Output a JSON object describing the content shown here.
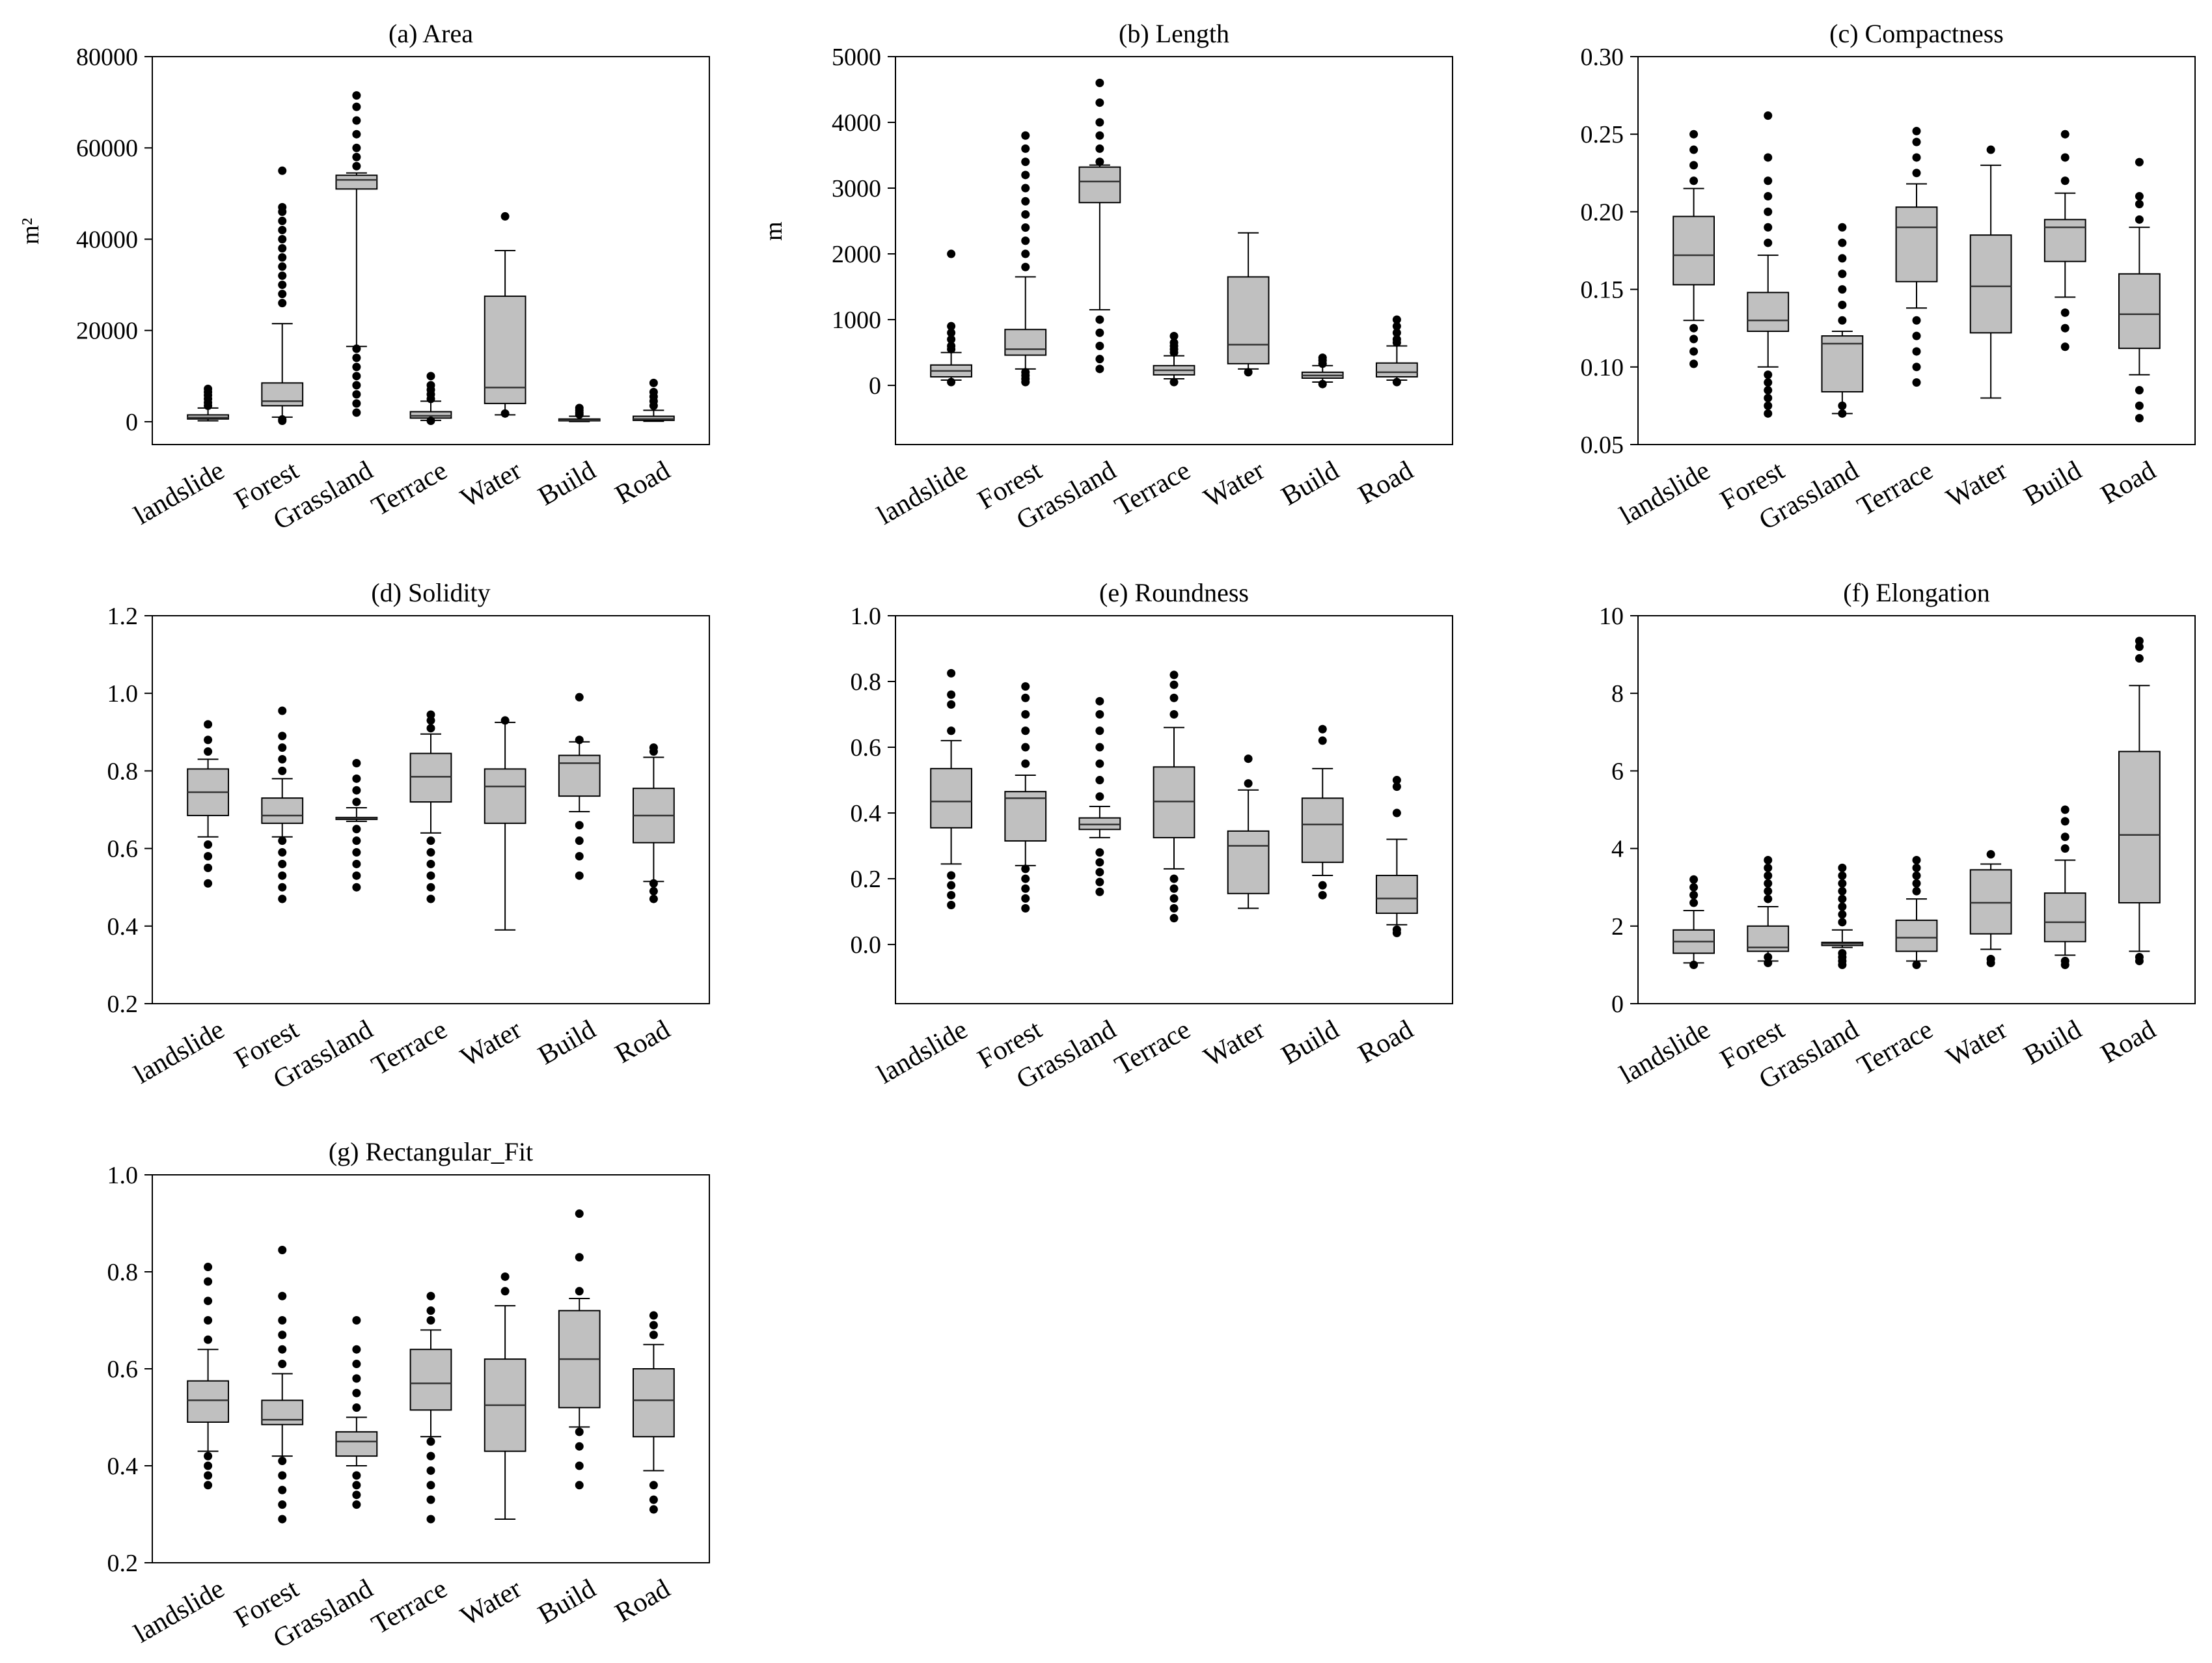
{
  "chart_data": [
    {
      "type": "box",
      "title": "(a) Area",
      "ylabel": "m²",
      "ylim": [
        -5000,
        80000
      ],
      "yticks": [
        0,
        20000,
        40000,
        60000,
        80000
      ],
      "ytick_labels": [
        "0",
        "20000",
        "40000",
        "60000",
        "80000"
      ],
      "categories": [
        "landslide",
        "Forest",
        "Grassland",
        "Terrace",
        "Water",
        "Build",
        "Road"
      ],
      "boxes": [
        {
          "min": 200,
          "q1": 600,
          "median": 900,
          "q3": 1500,
          "max": 3000,
          "outliers": [
            3500,
            4200,
            5000,
            5800,
            6500,
            7200
          ]
        },
        {
          "min": 1000,
          "q1": 3500,
          "median": 4500,
          "q3": 8500,
          "max": 21500,
          "outliers": [
            500,
            200,
            26000,
            28000,
            30000,
            32000,
            34000,
            36000,
            38000,
            40000,
            42000,
            44000,
            46000,
            47000,
            55000
          ]
        },
        {
          "min": 16500,
          "q1": 51000,
          "median": 53000,
          "q3": 54000,
          "max": 54500,
          "outliers": [
            2000,
            4000,
            6000,
            8000,
            10000,
            12000,
            14000,
            16000,
            56000,
            58000,
            60000,
            63000,
            66000,
            69000,
            71500
          ]
        },
        {
          "min": 300,
          "q1": 800,
          "median": 1300,
          "q3": 2200,
          "max": 4500,
          "outliers": [
            5000,
            6000,
            7000,
            8000,
            10000,
            200
          ]
        },
        {
          "min": 1500,
          "q1": 4000,
          "median": 7500,
          "q3": 27500,
          "max": 37500,
          "outliers": [
            45000,
            1800
          ]
        },
        {
          "min": 50,
          "q1": 200,
          "median": 350,
          "q3": 600,
          "max": 1200,
          "outliers": [
            1600,
            2000,
            2500,
            3000
          ]
        },
        {
          "min": 100,
          "q1": 300,
          "median": 600,
          "q3": 1200,
          "max": 2500,
          "outliers": [
            3500,
            4500,
            5500,
            6500,
            8500
          ]
        }
      ]
    },
    {
      "type": "box",
      "title": "(b) Length",
      "ylabel": "m",
      "ylim": [
        -900,
        5000
      ],
      "yticks": [
        0,
        1000,
        2000,
        3000,
        4000,
        5000
      ],
      "ytick_labels": [
        "0",
        "1000",
        "2000",
        "3000",
        "4000",
        "5000"
      ],
      "categories": [
        "landslide",
        "Forest",
        "Grassland",
        "Terrace",
        "Water",
        "Build",
        "Road"
      ],
      "boxes": [
        {
          "min": 80,
          "q1": 130,
          "median": 220,
          "q3": 310,
          "max": 500,
          "outliers": [
            550,
            600,
            700,
            800,
            900,
            2000,
            50
          ]
        },
        {
          "min": 250,
          "q1": 460,
          "median": 550,
          "q3": 850,
          "max": 1650,
          "outliers": [
            50,
            100,
            150,
            200,
            1800,
            2000,
            2200,
            2400,
            2600,
            2800,
            3000,
            3200,
            3400,
            3600,
            3800
          ]
        },
        {
          "min": 1150,
          "q1": 2780,
          "median": 3100,
          "q3": 3320,
          "max": 3350,
          "outliers": [
            250,
            400,
            600,
            800,
            1000,
            3400,
            3600,
            3800,
            4000,
            4300,
            4600
          ]
        },
        {
          "min": 100,
          "q1": 160,
          "median": 230,
          "q3": 300,
          "max": 450,
          "outliers": [
            500,
            550,
            600,
            650,
            750,
            50
          ]
        },
        {
          "min": 250,
          "q1": 330,
          "median": 620,
          "q3": 1650,
          "max": 2320,
          "outliers": [
            200
          ]
        },
        {
          "min": 50,
          "q1": 110,
          "median": 150,
          "q3": 200,
          "max": 300,
          "outliers": [
            330,
            380,
            420,
            20
          ]
        },
        {
          "min": 80,
          "q1": 130,
          "median": 200,
          "q3": 340,
          "max": 600,
          "outliers": [
            650,
            700,
            800,
            900,
            1000,
            50
          ]
        }
      ]
    },
    {
      "type": "box",
      "title": "(c) Compactness",
      "ylabel": "",
      "ylim": [
        0.05,
        0.3
      ],
      "yticks": [
        0.05,
        0.1,
        0.15,
        0.2,
        0.25,
        0.3
      ],
      "ytick_labels": [
        "0.05",
        "0.10",
        "0.15",
        "0.20",
        "0.25",
        "0.30"
      ],
      "categories": [
        "landslide",
        "Forest",
        "Grassland",
        "Terrace",
        "Water",
        "Build",
        "Road"
      ],
      "boxes": [
        {
          "min": 0.13,
          "q1": 0.153,
          "median": 0.172,
          "q3": 0.197,
          "max": 0.215,
          "outliers": [
            0.102,
            0.11,
            0.118,
            0.125,
            0.22,
            0.23,
            0.24,
            0.25
          ]
        },
        {
          "min": 0.1,
          "q1": 0.123,
          "median": 0.13,
          "q3": 0.148,
          "max": 0.172,
          "outliers": [
            0.07,
            0.075,
            0.08,
            0.085,
            0.09,
            0.095,
            0.18,
            0.19,
            0.2,
            0.21,
            0.22,
            0.235,
            0.262
          ]
        },
        {
          "min": 0.07,
          "q1": 0.084,
          "median": 0.115,
          "q3": 0.12,
          "max": 0.123,
          "outliers": [
            0.07,
            0.075,
            0.13,
            0.14,
            0.15,
            0.16,
            0.17,
            0.18,
            0.19
          ]
        },
        {
          "min": 0.138,
          "q1": 0.155,
          "median": 0.19,
          "q3": 0.203,
          "max": 0.218,
          "outliers": [
            0.09,
            0.1,
            0.11,
            0.12,
            0.13,
            0.225,
            0.235,
            0.245,
            0.252
          ]
        },
        {
          "min": 0.08,
          "q1": 0.122,
          "median": 0.152,
          "q3": 0.185,
          "max": 0.23,
          "outliers": [
            0.24
          ]
        },
        {
          "min": 0.145,
          "q1": 0.168,
          "median": 0.19,
          "q3": 0.195,
          "max": 0.212,
          "outliers": [
            0.113,
            0.125,
            0.135,
            0.22,
            0.235,
            0.25
          ]
        },
        {
          "min": 0.095,
          "q1": 0.112,
          "median": 0.134,
          "q3": 0.16,
          "max": 0.19,
          "outliers": [
            0.067,
            0.075,
            0.085,
            0.195,
            0.205,
            0.21,
            0.232
          ]
        }
      ]
    },
    {
      "type": "box",
      "title": "(d) Solidity",
      "ylabel": "",
      "ylim": [
        0.2,
        1.2
      ],
      "yticks": [
        0.2,
        0.4,
        0.6,
        0.8,
        1.0,
        1.2
      ],
      "ytick_labels": [
        "0.2",
        "0.4",
        "0.6",
        "0.8",
        "1.0",
        "1.2"
      ],
      "categories": [
        "landslide",
        "Forest",
        "Grassland",
        "Terrace",
        "Water",
        "Build",
        "Road"
      ],
      "boxes": [
        {
          "min": 0.63,
          "q1": 0.685,
          "median": 0.745,
          "q3": 0.805,
          "max": 0.83,
          "outliers": [
            0.51,
            0.55,
            0.58,
            0.61,
            0.85,
            0.88,
            0.92
          ]
        },
        {
          "min": 0.63,
          "q1": 0.665,
          "median": 0.685,
          "q3": 0.73,
          "max": 0.78,
          "outliers": [
            0.47,
            0.5,
            0.53,
            0.56,
            0.59,
            0.62,
            0.8,
            0.83,
            0.86,
            0.89,
            0.955
          ]
        },
        {
          "min": 0.67,
          "q1": 0.675,
          "median": 0.678,
          "q3": 0.68,
          "max": 0.705,
          "outliers": [
            0.5,
            0.53,
            0.56,
            0.59,
            0.62,
            0.65,
            0.72,
            0.75,
            0.78,
            0.82
          ]
        },
        {
          "min": 0.64,
          "q1": 0.72,
          "median": 0.785,
          "q3": 0.845,
          "max": 0.895,
          "outliers": [
            0.47,
            0.5,
            0.53,
            0.56,
            0.59,
            0.62,
            0.91,
            0.93,
            0.945
          ]
        },
        {
          "min": 0.39,
          "q1": 0.665,
          "median": 0.76,
          "q3": 0.805,
          "max": 0.925,
          "outliers": [
            0.93
          ]
        },
        {
          "min": 0.695,
          "q1": 0.735,
          "median": 0.82,
          "q3": 0.84,
          "max": 0.875,
          "outliers": [
            0.53,
            0.58,
            0.62,
            0.66,
            0.88,
            0.99
          ]
        },
        {
          "min": 0.515,
          "q1": 0.615,
          "median": 0.685,
          "q3": 0.755,
          "max": 0.835,
          "outliers": [
            0.47,
            0.49,
            0.51,
            0.85,
            0.86
          ]
        }
      ]
    },
    {
      "type": "box",
      "title": "(e) Roundness",
      "ylabel": "",
      "ylim": [
        -0.18,
        1.0
      ],
      "yticks": [
        0.0,
        0.2,
        0.4,
        0.6,
        0.8,
        1.0
      ],
      "ytick_labels": [
        "0.0",
        "0.2",
        "0.4",
        "0.6",
        "0.8",
        "1.0"
      ],
      "categories": [
        "landslide",
        "Forest",
        "Grassland",
        "Terrace",
        "Water",
        "Build",
        "Road"
      ],
      "boxes": [
        {
          "min": 0.245,
          "q1": 0.355,
          "median": 0.435,
          "q3": 0.535,
          "max": 0.62,
          "outliers": [
            0.12,
            0.15,
            0.18,
            0.21,
            0.65,
            0.73,
            0.76,
            0.825
          ]
        },
        {
          "min": 0.24,
          "q1": 0.315,
          "median": 0.445,
          "q3": 0.465,
          "max": 0.515,
          "outliers": [
            0.11,
            0.14,
            0.17,
            0.2,
            0.23,
            0.55,
            0.6,
            0.65,
            0.7,
            0.75,
            0.785
          ]
        },
        {
          "min": 0.325,
          "q1": 0.35,
          "median": 0.365,
          "q3": 0.385,
          "max": 0.42,
          "outliers": [
            0.16,
            0.19,
            0.22,
            0.25,
            0.28,
            0.45,
            0.5,
            0.55,
            0.6,
            0.65,
            0.7,
            0.74
          ]
        },
        {
          "min": 0.23,
          "q1": 0.325,
          "median": 0.435,
          "q3": 0.54,
          "max": 0.66,
          "outliers": [
            0.08,
            0.11,
            0.14,
            0.17,
            0.2,
            0.7,
            0.75,
            0.79,
            0.82
          ]
        },
        {
          "min": 0.11,
          "q1": 0.155,
          "median": 0.3,
          "q3": 0.345,
          "max": 0.47,
          "outliers": [
            0.49,
            0.565
          ]
        },
        {
          "min": 0.21,
          "q1": 0.25,
          "median": 0.365,
          "q3": 0.445,
          "max": 0.535,
          "outliers": [
            0.15,
            0.18,
            0.62,
            0.655
          ]
        },
        {
          "min": 0.06,
          "q1": 0.095,
          "median": 0.14,
          "q3": 0.21,
          "max": 0.32,
          "outliers": [
            0.035,
            0.045,
            0.4,
            0.48,
            0.5
          ]
        }
      ]
    },
    {
      "type": "box",
      "title": "(f) Elongation",
      "ylabel": "",
      "ylim": [
        0,
        10
      ],
      "yticks": [
        0,
        2,
        4,
        6,
        8,
        10
      ],
      "ytick_labels": [
        "0",
        "2",
        "4",
        "6",
        "8",
        "10"
      ],
      "categories": [
        "landslide",
        "Forest",
        "Grassland",
        "Terrace",
        "Water",
        "Build",
        "Road"
      ],
      "boxes": [
        {
          "min": 1.05,
          "q1": 1.3,
          "median": 1.6,
          "q3": 1.9,
          "max": 2.4,
          "outliers": [
            1.0,
            2.6,
            2.8,
            3.0,
            3.2
          ]
        },
        {
          "min": 1.1,
          "q1": 1.35,
          "median": 1.45,
          "q3": 2.0,
          "max": 2.5,
          "outliers": [
            1.05,
            1.2,
            2.7,
            2.9,
            3.1,
            3.3,
            3.5,
            3.7
          ]
        },
        {
          "min": 1.45,
          "q1": 1.5,
          "median": 1.55,
          "q3": 1.58,
          "max": 1.9,
          "outliers": [
            1.0,
            1.1,
            1.2,
            1.3,
            2.1,
            2.3,
            2.5,
            2.7,
            2.9,
            3.1,
            3.3,
            3.5
          ]
        },
        {
          "min": 1.1,
          "q1": 1.35,
          "median": 1.7,
          "q3": 2.15,
          "max": 2.7,
          "outliers": [
            1.0,
            2.9,
            3.1,
            3.3,
            3.5,
            3.7
          ]
        },
        {
          "min": 1.4,
          "q1": 1.8,
          "median": 2.6,
          "q3": 3.45,
          "max": 3.6,
          "outliers": [
            1.05,
            1.15,
            3.85
          ]
        },
        {
          "min": 1.25,
          "q1": 1.6,
          "median": 2.1,
          "q3": 2.85,
          "max": 3.7,
          "outliers": [
            1.0,
            1.1,
            4.0,
            4.3,
            4.7,
            5.0
          ]
        },
        {
          "min": 1.35,
          "q1": 2.6,
          "median": 4.35,
          "q3": 6.5,
          "max": 8.2,
          "outliers": [
            1.1,
            1.2,
            8.9,
            9.2,
            9.35
          ]
        }
      ]
    },
    {
      "type": "box",
      "title": "(g) Rectangular_Fit",
      "ylabel": "",
      "ylim": [
        0.2,
        1.0
      ],
      "yticks": [
        0.2,
        0.4,
        0.6,
        0.8,
        1.0
      ],
      "ytick_labels": [
        "0.2",
        "0.4",
        "0.6",
        "0.8",
        "1.0"
      ],
      "categories": [
        "landslide",
        "Forest",
        "Grassland",
        "Terrace",
        "Water",
        "Build",
        "Road"
      ],
      "boxes": [
        {
          "min": 0.43,
          "q1": 0.49,
          "median": 0.535,
          "q3": 0.575,
          "max": 0.64,
          "outliers": [
            0.36,
            0.38,
            0.4,
            0.42,
            0.66,
            0.7,
            0.74,
            0.78,
            0.81
          ]
        },
        {
          "min": 0.42,
          "q1": 0.485,
          "median": 0.495,
          "q3": 0.535,
          "max": 0.59,
          "outliers": [
            0.29,
            0.32,
            0.35,
            0.38,
            0.41,
            0.61,
            0.64,
            0.67,
            0.7,
            0.75,
            0.845
          ]
        },
        {
          "min": 0.4,
          "q1": 0.42,
          "median": 0.45,
          "q3": 0.47,
          "max": 0.5,
          "outliers": [
            0.32,
            0.34,
            0.36,
            0.38,
            0.52,
            0.55,
            0.58,
            0.61,
            0.64,
            0.7
          ]
        },
        {
          "min": 0.46,
          "q1": 0.515,
          "median": 0.57,
          "q3": 0.64,
          "max": 0.68,
          "outliers": [
            0.29,
            0.33,
            0.36,
            0.39,
            0.42,
            0.45,
            0.7,
            0.72,
            0.75
          ]
        },
        {
          "min": 0.29,
          "q1": 0.43,
          "median": 0.525,
          "q3": 0.62,
          "max": 0.73,
          "outliers": [
            0.76,
            0.79
          ]
        },
        {
          "min": 0.48,
          "q1": 0.52,
          "median": 0.62,
          "q3": 0.72,
          "max": 0.745,
          "outliers": [
            0.36,
            0.4,
            0.44,
            0.47,
            0.76,
            0.83,
            0.92
          ]
        },
        {
          "min": 0.39,
          "q1": 0.46,
          "median": 0.535,
          "q3": 0.6,
          "max": 0.65,
          "outliers": [
            0.31,
            0.33,
            0.36,
            0.67,
            0.69,
            0.71
          ]
        }
      ]
    }
  ]
}
